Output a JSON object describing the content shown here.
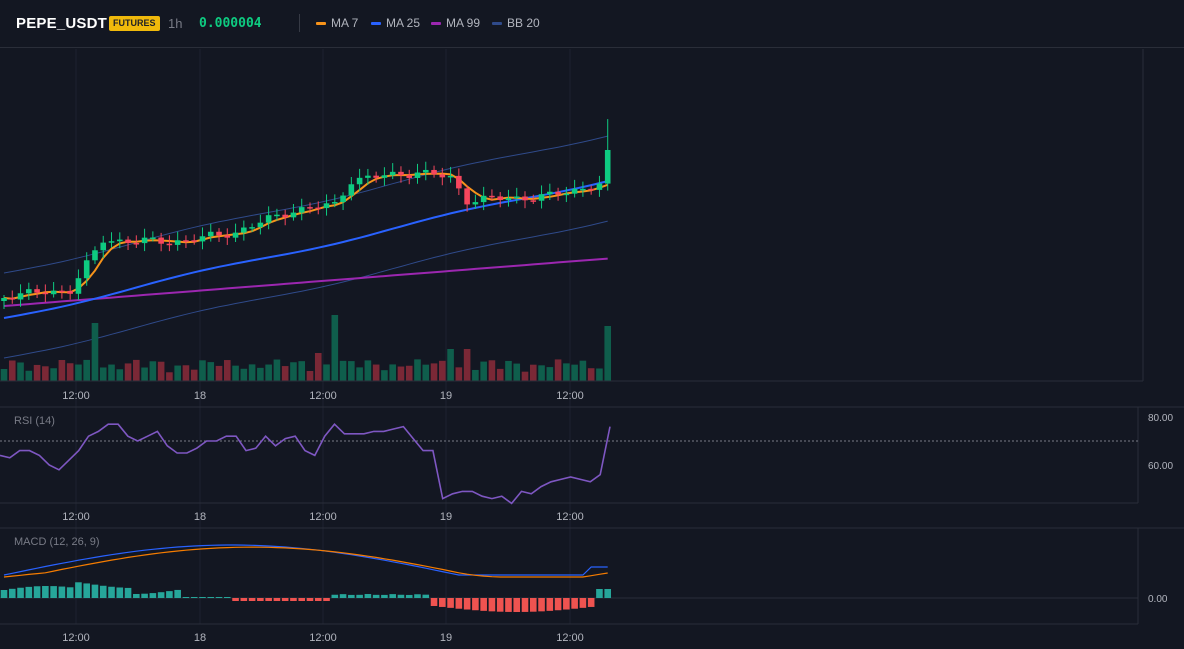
{
  "header": {
    "symbol": "PEPE_USDT",
    "market_badge": "FUTURES",
    "interval": "1h",
    "last_price": "0.000004",
    "indicators": [
      {
        "label": "MA 7",
        "color": "#f7931a"
      },
      {
        "label": "MA 25",
        "color": "#2962ff"
      },
      {
        "label": "MA 99",
        "color": "#9c27b0"
      },
      {
        "label": "BB 20",
        "color": "#2f4a8a"
      }
    ]
  },
  "colors": {
    "background": "#131722",
    "up": "#0ecb81",
    "down": "#f6465d",
    "grid": "#1e2230",
    "rsi_line": "#7e57c2",
    "macd_line": "#2962ff",
    "signal_line": "#f57c00"
  },
  "time_axis": [
    "12:00",
    "18",
    "12:00",
    "19",
    "12:00"
  ],
  "rsi": {
    "label": "RSI (14)",
    "ticks": [
      "80.00",
      "60.00"
    ],
    "values": [
      64,
      63,
      66,
      66,
      64,
      60,
      58,
      62,
      66,
      72,
      74,
      77,
      77,
      72,
      70,
      72,
      74,
      68,
      65,
      65,
      67,
      70,
      70,
      72,
      72,
      66,
      67,
      72,
      68,
      71,
      72,
      66,
      64,
      72,
      77,
      73,
      73,
      73,
      74,
      74,
      75,
      76,
      71,
      66,
      66,
      46,
      48,
      49,
      49,
      47,
      46,
      47,
      44,
      49,
      48,
      51,
      53,
      54,
      55,
      54,
      53,
      56,
      76
    ]
  },
  "macd": {
    "label": "MACD (12, 26, 9)",
    "ticks": [
      "0.00"
    ]
  },
  "chart_data": {
    "type": "candlestick",
    "symbol": "PEPE_USDT",
    "interval": "1h",
    "ma_series": [
      "MA 7",
      "MA 25",
      "MA 99",
      "BB 20"
    ]
  }
}
